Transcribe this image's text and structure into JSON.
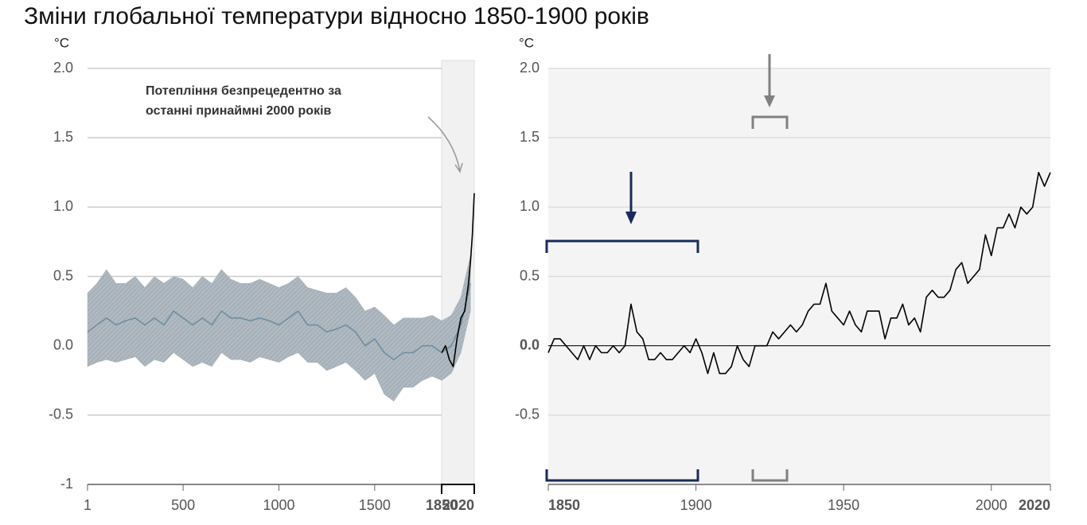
{
  "title": "Зміни глобальної температури відносно 1850-1900 років",
  "chart_data": [
    {
      "type": "line",
      "unit": "°C",
      "annotation": [
        "Потепління безпрецедентно за",
        "останні принаймні 2000 років"
      ],
      "xlim": [
        1,
        2020
      ],
      "xticks": [
        1,
        500,
        1000,
        1500,
        1850,
        2020
      ],
      "ylim": [
        -1,
        2
      ],
      "yticks": [
        -1,
        {
          "value": -0.5,
          "label": "-0.5"
        },
        {
          "value": 0,
          "label": "0.0"
        },
        {
          "value": 0.5,
          "label": "0.5"
        },
        {
          "value": 1,
          "label": "1.0"
        },
        {
          "value": 1.5,
          "label": "1.5"
        },
        {
          "value": 2,
          "label": "2.0"
        }
      ],
      "grid": true,
      "shade": [
        1850,
        2020
      ],
      "band": {
        "color": "#a7b1b9",
        "x": [
          1,
          50,
          100,
          150,
          200,
          250,
          300,
          350,
          400,
          450,
          500,
          550,
          600,
          650,
          700,
          750,
          800,
          850,
          900,
          950,
          1000,
          1050,
          1100,
          1150,
          1200,
          1250,
          1300,
          1350,
          1400,
          1450,
          1500,
          1550,
          1600,
          1650,
          1700,
          1750,
          1800,
          1850,
          1900,
          1950,
          2000
        ],
        "high": [
          0.38,
          0.45,
          0.55,
          0.45,
          0.45,
          0.5,
          0.42,
          0.5,
          0.45,
          0.5,
          0.48,
          0.42,
          0.5,
          0.45,
          0.55,
          0.48,
          0.45,
          0.45,
          0.48,
          0.45,
          0.42,
          0.45,
          0.5,
          0.42,
          0.4,
          0.38,
          0.38,
          0.42,
          0.35,
          0.25,
          0.28,
          0.22,
          0.15,
          0.2,
          0.2,
          0.2,
          0.22,
          0.18,
          0.22,
          0.35,
          0.65
        ],
        "low": [
          -0.15,
          -0.12,
          -0.1,
          -0.12,
          -0.1,
          -0.08,
          -0.15,
          -0.1,
          -0.12,
          -0.05,
          -0.1,
          -0.15,
          -0.12,
          -0.15,
          -0.05,
          -0.1,
          -0.1,
          -0.12,
          -0.08,
          -0.1,
          -0.12,
          -0.08,
          -0.05,
          -0.12,
          -0.12,
          -0.18,
          -0.15,
          -0.12,
          -0.18,
          -0.25,
          -0.2,
          -0.35,
          -0.4,
          -0.3,
          -0.3,
          -0.25,
          -0.22,
          -0.25,
          -0.2,
          -0.05,
          0.25
        ]
      },
      "series": [
        {
          "color": "#6f8ea2",
          "x": [
            1,
            50,
            100,
            150,
            200,
            250,
            300,
            350,
            400,
            450,
            500,
            550,
            600,
            650,
            700,
            750,
            800,
            850,
            900,
            950,
            1000,
            1050,
            1100,
            1150,
            1200,
            1250,
            1300,
            1350,
            1400,
            1450,
            1500,
            1550,
            1600,
            1650,
            1700,
            1750,
            1800,
            1850,
            1900,
            1950,
            2000
          ],
          "values": [
            0.1,
            0.15,
            0.2,
            0.15,
            0.18,
            0.2,
            0.15,
            0.2,
            0.15,
            0.25,
            0.2,
            0.15,
            0.2,
            0.15,
            0.25,
            0.2,
            0.2,
            0.18,
            0.2,
            0.18,
            0.15,
            0.2,
            0.25,
            0.15,
            0.15,
            0.1,
            0.12,
            0.15,
            0.1,
            0.0,
            0.05,
            -0.05,
            -0.1,
            -0.05,
            -0.05,
            0.0,
            0.0,
            -0.05,
            0.0,
            0.15,
            0.45
          ]
        },
        {
          "color": "#000000",
          "x": [
            1850,
            1870,
            1890,
            1910,
            1930,
            1950,
            1970,
            1990,
            2000,
            2010,
            2020
          ],
          "values": [
            -0.05,
            0.0,
            -0.1,
            -0.15,
            0.05,
            0.2,
            0.25,
            0.45,
            0.6,
            0.8,
            1.1
          ]
        }
      ]
    },
    {
      "type": "line",
      "unit": "°C",
      "xlim": [
        1850,
        2020
      ],
      "xticks": [
        1850,
        1900,
        1950,
        2000,
        2020
      ],
      "ylim": [
        -1,
        2
      ],
      "yticks": [
        {
          "value": -0.5,
          "label": "-0.5"
        },
        {
          "value": 0,
          "label": "0.0"
        },
        {
          "value": 0.5,
          "label": "0.5"
        },
        {
          "value": 1,
          "label": "1.0"
        },
        {
          "value": 1.5,
          "label": "1.5"
        },
        {
          "value": 2,
          "label": "2.0"
        }
      ],
      "grid": true,
      "zero_line": true,
      "series": [
        {
          "color": "#000000",
          "x": [
            1850,
            1852,
            1854,
            1856,
            1858,
            1860,
            1862,
            1864,
            1866,
            1868,
            1870,
            1872,
            1874,
            1876,
            1878,
            1880,
            1882,
            1884,
            1886,
            1888,
            1890,
            1892,
            1894,
            1896,
            1898,
            1900,
            1902,
            1904,
            1906,
            1908,
            1910,
            1912,
            1914,
            1916,
            1918,
            1920,
            1922,
            1924,
            1926,
            1928,
            1930,
            1932,
            1934,
            1936,
            1938,
            1940,
            1942,
            1944,
            1946,
            1948,
            1950,
            1952,
            1954,
            1956,
            1958,
            1960,
            1962,
            1964,
            1966,
            1968,
            1970,
            1972,
            1974,
            1976,
            1978,
            1980,
            1982,
            1984,
            1986,
            1988,
            1990,
            1992,
            1994,
            1996,
            1998,
            2000,
            2002,
            2004,
            2006,
            2008,
            2010,
            2012,
            2014,
            2016,
            2018,
            2020
          ],
          "values": [
            -0.05,
            0.05,
            0.05,
            0.0,
            -0.05,
            -0.1,
            0.0,
            -0.1,
            0.0,
            -0.05,
            -0.05,
            0.0,
            -0.05,
            0.0,
            0.3,
            0.1,
            0.05,
            -0.1,
            -0.1,
            -0.05,
            -0.1,
            -0.1,
            -0.05,
            0.0,
            -0.05,
            0.05,
            -0.05,
            -0.2,
            -0.05,
            -0.2,
            -0.2,
            -0.15,
            0.0,
            -0.1,
            -0.15,
            0.0,
            0.0,
            0.0,
            0.1,
            0.05,
            0.1,
            0.15,
            0.1,
            0.15,
            0.25,
            0.3,
            0.3,
            0.45,
            0.25,
            0.2,
            0.15,
            0.25,
            0.15,
            0.1,
            0.25,
            0.25,
            0.25,
            0.05,
            0.2,
            0.2,
            0.3,
            0.15,
            0.2,
            0.1,
            0.35,
            0.4,
            0.35,
            0.35,
            0.4,
            0.55,
            0.6,
            0.45,
            0.5,
            0.55,
            0.8,
            0.65,
            0.85,
            0.85,
            0.95,
            0.85,
            1.0,
            0.95,
            1.0,
            1.25,
            1.15,
            1.25
          ]
        }
      ]
    }
  ]
}
